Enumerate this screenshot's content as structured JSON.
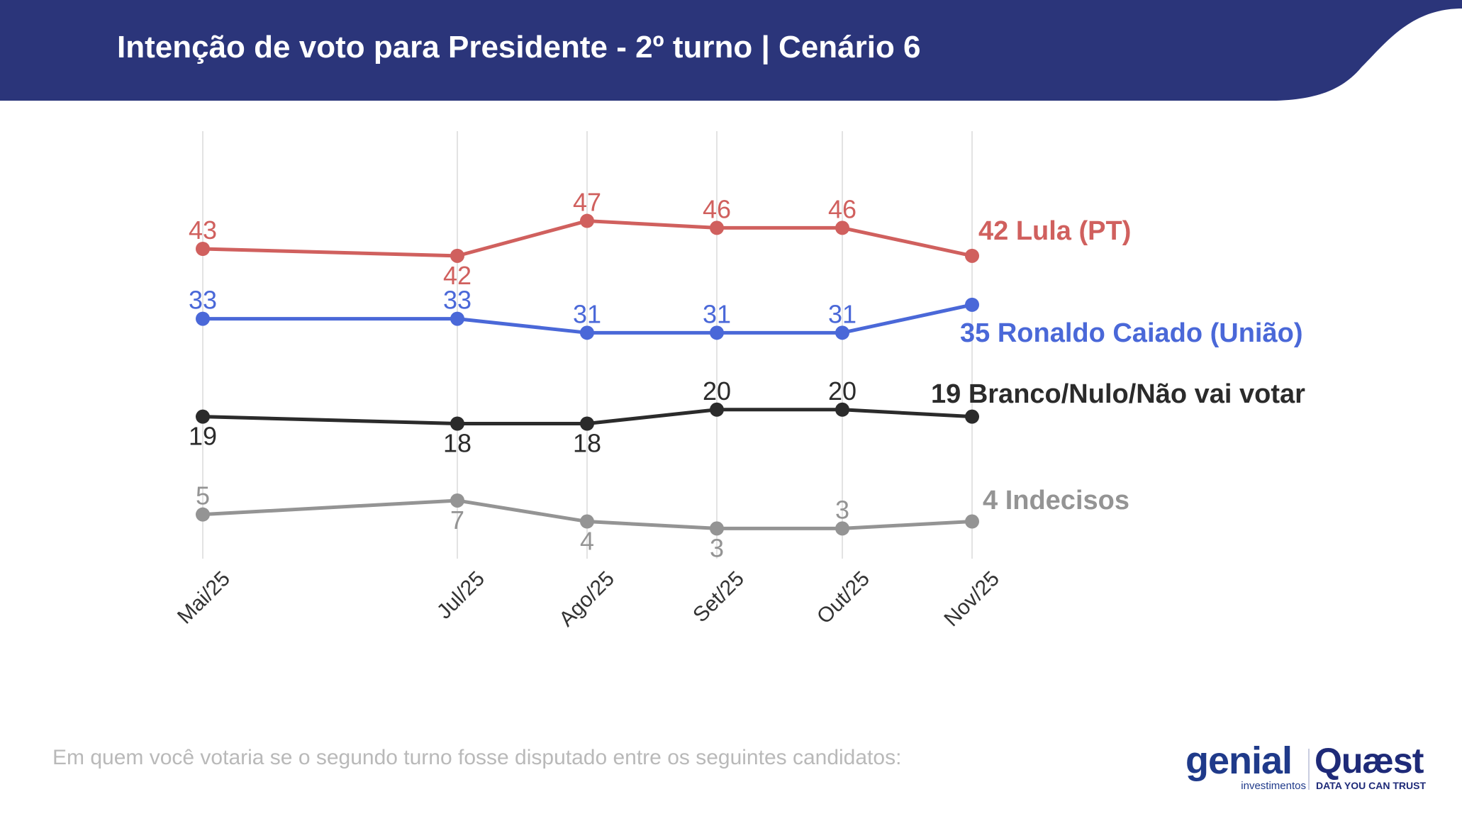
{
  "header": {
    "title": "Intenção de voto para Presidente - 2º turno | Cenário 6",
    "background_color": "#2b357a"
  },
  "chart_data": {
    "type": "line",
    "title": "",
    "xlabel": "",
    "ylabel": "",
    "categories": [
      "Mai/25",
      "Jul/25",
      "Ago/25",
      "Set/25",
      "Out/25",
      "Nov/25"
    ],
    "grid": "vertical",
    "legend": "end-of-line labels",
    "ylim": [
      0,
      55
    ],
    "series": [
      {
        "name": "Lula (PT)",
        "color": "#d0605e",
        "values": [
          43,
          42,
          47,
          46,
          46,
          42
        ],
        "end_label": "42 Lula (PT)",
        "label_positions": [
          "above",
          "below",
          "above",
          "above",
          "above"
        ]
      },
      {
        "name": "Ronaldo Caiado (União)",
        "color": "#4a68d8",
        "values": [
          33,
          33,
          31,
          31,
          31,
          35
        ],
        "end_label": "35 Ronaldo Caiado (União)",
        "label_positions": [
          "above",
          "above",
          "above",
          "above",
          "above"
        ]
      },
      {
        "name": "Branco/Nulo/Não vai votar",
        "color": "#2b2b2b",
        "values": [
          19,
          18,
          18,
          20,
          20,
          19
        ],
        "end_label": "19 Branco/Nulo/Não vai votar",
        "label_positions": [
          "below",
          "below",
          "below",
          "above",
          "above"
        ]
      },
      {
        "name": "Indecisos",
        "color": "#949494",
        "values": [
          5,
          7,
          4,
          3,
          3,
          4
        ],
        "end_label": "4 Indecisos",
        "label_positions": [
          "above",
          "below",
          "below",
          "below",
          "above"
        ]
      }
    ]
  },
  "footnote": "Em quem você votaria se o segundo turno fosse disputado entre os seguintes candidatos:",
  "logos": {
    "genial": {
      "name": "genial",
      "tagline": "investimentos",
      "color": "#1f3a8a"
    },
    "quaest": {
      "name": "Quæst",
      "tagline": "DATA YOU CAN TRUST",
      "color": "#1e2a78"
    }
  }
}
